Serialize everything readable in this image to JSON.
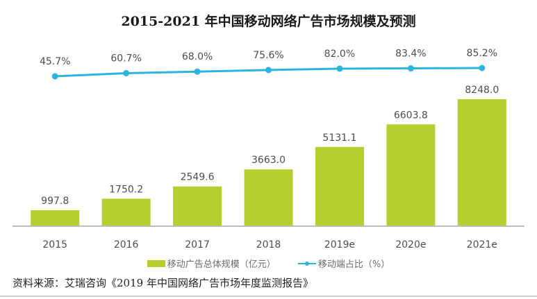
{
  "chart_data": {
    "type": "bar",
    "title": "2015-2021 年中国移动网络广告市场规模及预测",
    "categories": [
      "2015",
      "2016",
      "2017",
      "2018",
      "2019e",
      "2020e",
      "2021e"
    ],
    "series": [
      {
        "name": "移动广告总体规模（亿元）",
        "type": "bar",
        "color": "#b5cf2e",
        "values": [
          997.8,
          1750.2,
          2549.6,
          3663.0,
          5131.1,
          6603.8,
          8248.0
        ],
        "labels": [
          "997.8",
          "1750.2",
          "2549.6",
          "3663.0",
          "5131.1",
          "6603.8",
          "8248.0"
        ]
      },
      {
        "name": "移动端占比（%）",
        "type": "line",
        "color": "#2cb4e0",
        "values": [
          45.7,
          60.7,
          68.0,
          75.6,
          82.0,
          83.4,
          85.2
        ],
        "labels": [
          "45.7%",
          "60.7%",
          "68.0%",
          "75.6%",
          "82.0%",
          "83.4%",
          "85.2%"
        ]
      }
    ],
    "xlabel": "",
    "ylabel": "",
    "ylim": [
      0,
      8248.0
    ],
    "y2lim": [
      0,
      100
    ],
    "grid": false,
    "legend_position": "bottom"
  },
  "legend": {
    "bar_label": "移动广告总体规模（亿元）",
    "line_label": "移动端占比（%）"
  },
  "source": "资料来源：艾瑞咨询《2019 年中国网络广告市场年度监测报告》"
}
